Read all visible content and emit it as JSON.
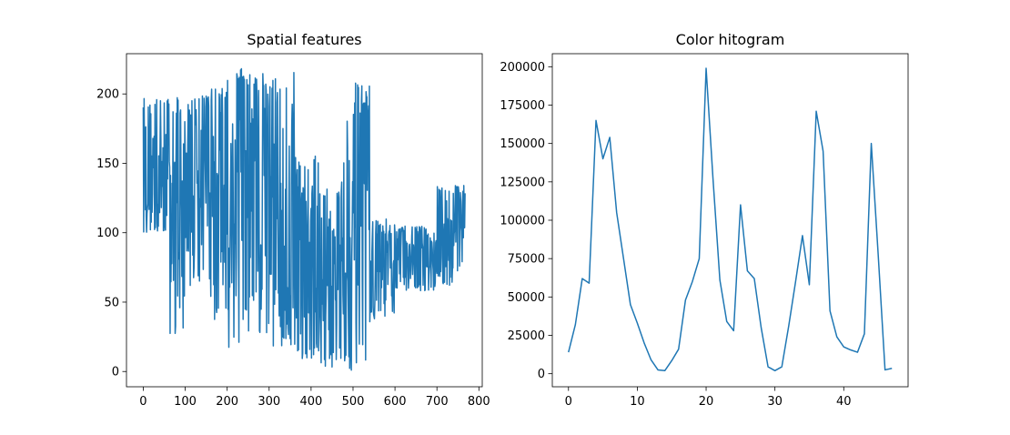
{
  "chart_data": [
    {
      "type": "line",
      "title": "Spatial features",
      "xlabel": "",
      "ylabel": "",
      "xlim": [
        -40,
        808
      ],
      "ylim": [
        -11,
        229
      ],
      "xticks": [
        0,
        100,
        200,
        300,
        400,
        500,
        600,
        700,
        800
      ],
      "yticks": [
        0,
        50,
        100,
        150,
        200
      ],
      "grid": false,
      "color": "#1f77b4",
      "n_points": 768,
      "x_range": [
        0,
        767
      ],
      "segments": [
        {
          "x_range": [
            0,
            60
          ],
          "low": 97,
          "high": 197
        },
        {
          "x_range": [
            60,
            100
          ],
          "low": 27,
          "high": 199
        },
        {
          "x_range": [
            100,
            160
          ],
          "low": 62,
          "high": 199
        },
        {
          "x_range": [
            160,
            200
          ],
          "low": 35,
          "high": 208
        },
        {
          "x_range": [
            200,
            300
          ],
          "low": 10,
          "high": 219
        },
        {
          "x_range": [
            300,
            360
          ],
          "low": 17,
          "high": 218
        },
        {
          "x_range": [
            360,
            420
          ],
          "low": 8,
          "high": 156
        },
        {
          "x_range": [
            420,
            470
          ],
          "low": 1,
          "high": 133
        },
        {
          "x_range": [
            470,
            540
          ],
          "low": 1,
          "high": 208
        },
        {
          "x_range": [
            540,
            600
          ],
          "low": 38,
          "high": 110
        },
        {
          "x_range": [
            600,
            700
          ],
          "low": 58,
          "high": 105
        },
        {
          "x_range": [
            700,
            767
          ],
          "low": 62,
          "high": 134
        }
      ]
    },
    {
      "type": "line",
      "title": "Color hitogram",
      "xlabel": "",
      "ylabel": "",
      "xlim": [
        -2.35,
        49.35
      ],
      "ylim": [
        -8500,
        208500
      ],
      "xticks": [
        0,
        10,
        20,
        30,
        40
      ],
      "yticks": [
        0,
        25000,
        50000,
        75000,
        100000,
        125000,
        150000,
        175000,
        200000
      ],
      "grid": false,
      "color": "#1f77b4",
      "x": [
        0,
        1,
        2,
        3,
        4,
        5,
        6,
        7,
        8,
        9,
        10,
        11,
        12,
        13,
        14,
        15,
        16,
        17,
        18,
        19,
        20,
        21,
        22,
        23,
        24,
        25,
        26,
        27,
        28,
        29,
        30,
        31,
        32,
        33,
        34,
        35,
        36,
        37,
        38,
        39,
        40,
        41,
        42,
        43,
        44,
        45,
        46,
        47
      ],
      "values": [
        14000,
        32000,
        62000,
        59000,
        165000,
        140000,
        154000,
        105000,
        75000,
        45000,
        33000,
        20000,
        9000,
        2500,
        2000,
        8500,
        16000,
        48000,
        60000,
        75000,
        199000,
        127000,
        61000,
        34000,
        28000,
        110000,
        67000,
        62000,
        30000,
        4500,
        2000,
        4500,
        31000,
        60000,
        90000,
        58000,
        171000,
        145000,
        41000,
        24000,
        17500,
        15500,
        14000,
        26000,
        150000,
        78000,
        2500,
        3500
      ]
    }
  ]
}
